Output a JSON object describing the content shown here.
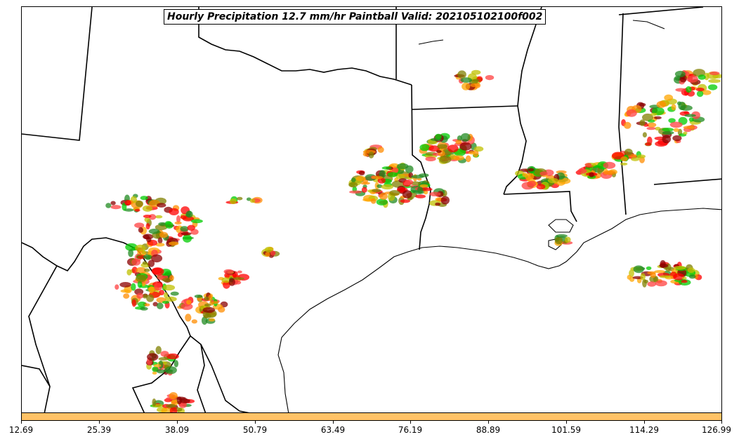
{
  "title": "Hourly Precipitation 12.7 mm/hr Paintball Valid: 202105102100f002",
  "colorbar": {
    "color": "#ffc266",
    "ticks": [
      "12.69",
      "25.39",
      "38.09",
      "50.79",
      "63.49",
      "76.19",
      "88.89",
      "101.59",
      "114.29",
      "126.99"
    ]
  },
  "member_colors": [
    "#ff0000",
    "#ff8c00",
    "#00cc00",
    "#8b0000",
    "#228b22",
    "#808000",
    "#ffa500",
    "#c0c000",
    "#ff4040"
  ]
}
